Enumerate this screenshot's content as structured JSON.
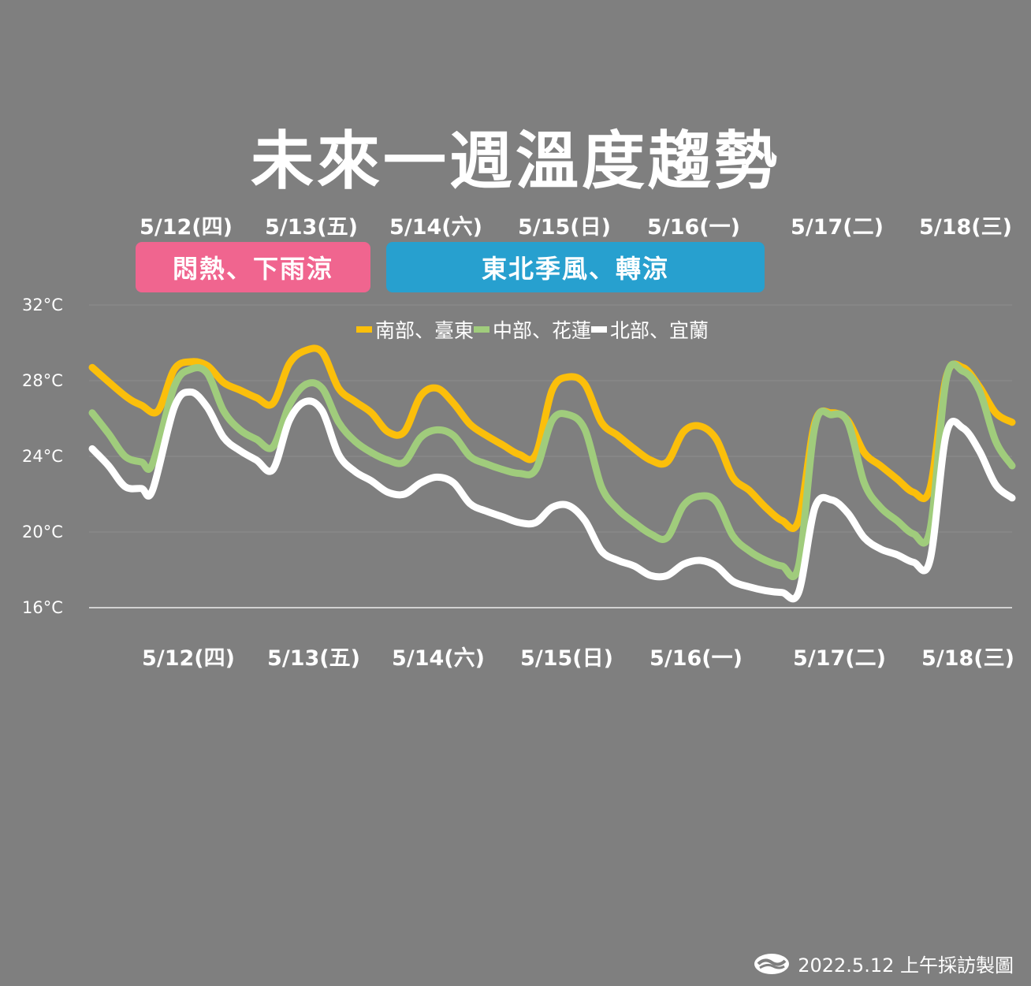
{
  "title": "未來一週溫度趨勢",
  "bands": [
    {
      "label": "悶熱、下雨涼",
      "color": "#f0658f"
    },
    {
      "label": "東北季風、轉涼",
      "color": "#27a0cf"
    }
  ],
  "credit": "2022.5.12 上午採訪製圖",
  "chart_data": {
    "type": "line",
    "title": "未來一週溫度趨勢",
    "xlabel": "",
    "ylabel": "",
    "ylim": [
      16,
      32
    ],
    "yticks": [
      "16°C",
      "20°C",
      "24°C",
      "28°C",
      "32°C"
    ],
    "ytick_values": [
      16,
      20,
      24,
      28,
      32
    ],
    "categories": [
      "5/12(四)",
      "5/13(五)",
      "5/14(六)",
      "5/15(日)",
      "5/16(一)",
      "5/17(二)",
      "5/18(三)"
    ],
    "grid": true,
    "legend_position": "top-center",
    "x_unit": "hour (0 = 2022-05-12 00:00)",
    "series": [
      {
        "name": "南部、臺東",
        "color": "#fbbf0b",
        "points": [
          [
            0,
            28.7
          ],
          [
            12,
            27.2
          ],
          [
            18,
            26.7
          ],
          [
            24,
            26.4
          ],
          [
            30,
            28.6
          ],
          [
            36,
            29.0
          ],
          [
            42,
            28.8
          ],
          [
            48,
            27.9
          ],
          [
            54,
            27.5
          ],
          [
            60,
            27.1
          ],
          [
            66,
            26.8
          ],
          [
            72,
            28.9
          ],
          [
            78,
            29.6
          ],
          [
            84,
            29.5
          ],
          [
            90,
            27.6
          ],
          [
            96,
            26.9
          ],
          [
            102,
            26.3
          ],
          [
            108,
            25.3
          ],
          [
            114,
            25.3
          ],
          [
            120,
            27.2
          ],
          [
            126,
            27.6
          ],
          [
            132,
            26.8
          ],
          [
            138,
            25.7
          ],
          [
            144,
            25.1
          ],
          [
            150,
            24.6
          ],
          [
            156,
            24.1
          ],
          [
            162,
            24.1
          ],
          [
            168,
            27.5
          ],
          [
            174,
            28.2
          ],
          [
            180,
            27.8
          ],
          [
            186,
            25.8
          ],
          [
            192,
            25.1
          ],
          [
            198,
            24.4
          ],
          [
            204,
            23.8
          ],
          [
            210,
            23.7
          ],
          [
            216,
            25.3
          ],
          [
            222,
            25.6
          ],
          [
            228,
            24.9
          ],
          [
            234,
            22.9
          ],
          [
            240,
            22.2
          ],
          [
            246,
            21.3
          ],
          [
            252,
            20.6
          ],
          [
            258,
            20.6
          ],
          [
            264,
            25.8
          ],
          [
            270,
            26.3
          ],
          [
            276,
            25.9
          ],
          [
            282,
            24.2
          ],
          [
            288,
            23.5
          ],
          [
            294,
            22.8
          ],
          [
            300,
            22.1
          ],
          [
            306,
            22.3
          ],
          [
            312,
            28.2
          ],
          [
            318,
            28.7
          ],
          [
            324,
            27.7
          ],
          [
            330,
            26.3
          ],
          [
            336,
            25.8
          ]
        ]
      },
      {
        "name": "中部、花蓮",
        "color": "#a0cc7c",
        "points": [
          [
            0,
            26.3
          ],
          [
            6,
            25.2
          ],
          [
            12,
            24.0
          ],
          [
            18,
            23.7
          ],
          [
            22,
            23.6
          ],
          [
            30,
            27.7
          ],
          [
            36,
            28.6
          ],
          [
            42,
            28.4
          ],
          [
            48,
            26.4
          ],
          [
            54,
            25.4
          ],
          [
            60,
            24.9
          ],
          [
            66,
            24.5
          ],
          [
            72,
            26.7
          ],
          [
            78,
            27.8
          ],
          [
            84,
            27.6
          ],
          [
            90,
            25.8
          ],
          [
            96,
            24.8
          ],
          [
            102,
            24.2
          ],
          [
            108,
            23.8
          ],
          [
            114,
            23.7
          ],
          [
            120,
            25.0
          ],
          [
            126,
            25.4
          ],
          [
            132,
            25.1
          ],
          [
            138,
            24.0
          ],
          [
            144,
            23.6
          ],
          [
            150,
            23.3
          ],
          [
            156,
            23.1
          ],
          [
            162,
            23.3
          ],
          [
            168,
            25.9
          ],
          [
            174,
            26.2
          ],
          [
            180,
            25.4
          ],
          [
            186,
            22.4
          ],
          [
            192,
            21.2
          ],
          [
            198,
            20.5
          ],
          [
            204,
            19.9
          ],
          [
            210,
            19.7
          ],
          [
            216,
            21.4
          ],
          [
            222,
            21.9
          ],
          [
            228,
            21.6
          ],
          [
            234,
            19.8
          ],
          [
            240,
            19.0
          ],
          [
            246,
            18.5
          ],
          [
            252,
            18.2
          ],
          [
            258,
            18.2
          ],
          [
            264,
            25.6
          ],
          [
            270,
            26.2
          ],
          [
            276,
            25.8
          ],
          [
            282,
            22.6
          ],
          [
            288,
            21.3
          ],
          [
            294,
            20.6
          ],
          [
            300,
            19.9
          ],
          [
            306,
            20.1
          ],
          [
            312,
            28.1
          ],
          [
            318,
            28.5
          ],
          [
            324,
            27.5
          ],
          [
            330,
            24.8
          ],
          [
            336,
            23.5
          ]
        ]
      },
      {
        "name": "北部、宜蘭",
        "color": "#ffffff",
        "points": [
          [
            0,
            24.4
          ],
          [
            6,
            23.5
          ],
          [
            12,
            22.4
          ],
          [
            18,
            22.3
          ],
          [
            22,
            22.2
          ],
          [
            30,
            26.6
          ],
          [
            36,
            27.4
          ],
          [
            42,
            26.6
          ],
          [
            48,
            25.0
          ],
          [
            54,
            24.3
          ],
          [
            60,
            23.8
          ],
          [
            66,
            23.3
          ],
          [
            72,
            25.9
          ],
          [
            78,
            26.9
          ],
          [
            84,
            26.4
          ],
          [
            90,
            24.1
          ],
          [
            96,
            23.2
          ],
          [
            102,
            22.7
          ],
          [
            108,
            22.1
          ],
          [
            114,
            22.0
          ],
          [
            120,
            22.6
          ],
          [
            126,
            22.9
          ],
          [
            132,
            22.6
          ],
          [
            138,
            21.5
          ],
          [
            144,
            21.1
          ],
          [
            150,
            20.8
          ],
          [
            156,
            20.5
          ],
          [
            162,
            20.5
          ],
          [
            168,
            21.3
          ],
          [
            174,
            21.4
          ],
          [
            180,
            20.6
          ],
          [
            186,
            19.0
          ],
          [
            192,
            18.5
          ],
          [
            198,
            18.2
          ],
          [
            204,
            17.7
          ],
          [
            210,
            17.7
          ],
          [
            216,
            18.3
          ],
          [
            222,
            18.5
          ],
          [
            228,
            18.2
          ],
          [
            234,
            17.4
          ],
          [
            240,
            17.1
          ],
          [
            246,
            16.9
          ],
          [
            252,
            16.8
          ],
          [
            258,
            16.8
          ],
          [
            264,
            21.3
          ],
          [
            270,
            21.7
          ],
          [
            276,
            21.0
          ],
          [
            282,
            19.7
          ],
          [
            288,
            19.1
          ],
          [
            294,
            18.8
          ],
          [
            300,
            18.4
          ],
          [
            306,
            18.5
          ],
          [
            312,
            25.2
          ],
          [
            318,
            25.5
          ],
          [
            324,
            24.3
          ],
          [
            330,
            22.5
          ],
          [
            336,
            21.8
          ]
        ]
      }
    ]
  }
}
